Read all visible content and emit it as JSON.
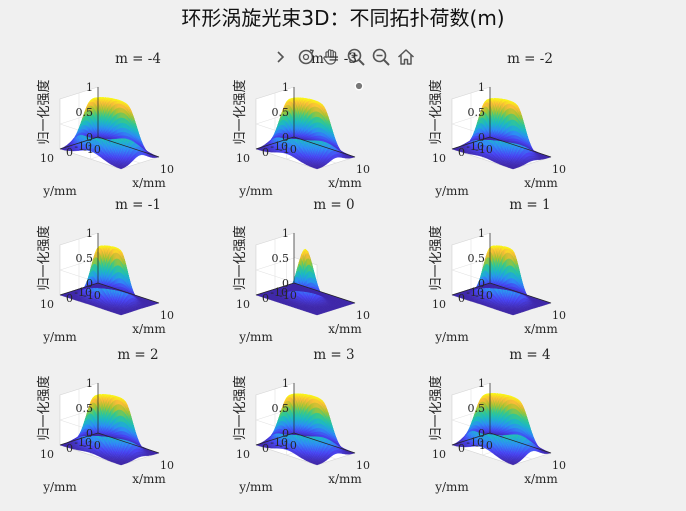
{
  "figure": {
    "title": "环形涡旋光束3D：不同拓扑荷数(m)",
    "toolbar_icons": [
      "chevron-right-icon",
      "rotate-3d-icon",
      "pan-hand-icon",
      "zoom-in-icon",
      "zoom-out-icon",
      "home-icon"
    ]
  },
  "colors": {
    "background": "#f0f0f0",
    "colormap": [
      "#3e26a8",
      "#4743f3",
      "#2d8cf6",
      "#1bb8c6",
      "#36c98a",
      "#a9c32f",
      "#f9bb39",
      "#f9fb14"
    ]
  },
  "chart_data": [
    {
      "type": "surface3d",
      "title": "m = -4",
      "m": -4,
      "peak_radius_mm": 4.8,
      "width_mm": 2.7,
      "ring": true,
      "xlabel": "x/mm",
      "ylabel": "y/mm",
      "zlabel": "归一化强度",
      "xticks": [
        "-10",
        "10"
      ],
      "yticks": [
        "-10",
        "0",
        "10"
      ],
      "zticks": [
        "0",
        "0.5",
        "1"
      ],
      "xlim": [
        -10,
        10
      ],
      "ylim": [
        -10,
        10
      ],
      "zlim": [
        0,
        1
      ],
      "grid": true
    },
    {
      "type": "surface3d",
      "title": "m = -3",
      "m": -3,
      "peak_radius_mm": 4.5,
      "width_mm": 2.6,
      "ring": true,
      "xlabel": "x/mm",
      "ylabel": "y/mm",
      "zlabel": "归一化强度",
      "xticks": [
        "-10",
        "10"
      ],
      "yticks": [
        "-10",
        "0",
        "10"
      ],
      "zticks": [
        "0",
        "0.5",
        "1"
      ],
      "xlim": [
        -10,
        10
      ],
      "ylim": [
        -10,
        10
      ],
      "zlim": [
        0,
        1
      ],
      "grid": true
    },
    {
      "type": "surface3d",
      "title": "m = -2",
      "m": -2,
      "peak_radius_mm": 4.0,
      "width_mm": 2.4,
      "ring": true,
      "xlabel": "x/mm",
      "ylabel": "y/mm",
      "zlabel": "归一化强度",
      "xticks": [
        "-10",
        "10"
      ],
      "yticks": [
        "-10",
        "0",
        "10"
      ],
      "zticks": [
        "0",
        "0.5",
        "1"
      ],
      "xlim": [
        -10,
        10
      ],
      "ylim": [
        -10,
        10
      ],
      "zlim": [
        0,
        1
      ],
      "grid": true
    },
    {
      "type": "surface3d",
      "title": "m = -1",
      "m": -1,
      "peak_radius_mm": 2.9,
      "width_mm": 2.1,
      "ring": true,
      "xlabel": "x/mm",
      "ylabel": "y/mm",
      "zlabel": "归一化强度",
      "xticks": [
        "-10",
        "10"
      ],
      "yticks": [
        "-10",
        "0",
        "10"
      ],
      "zticks": [
        "0",
        "0.5",
        "1"
      ],
      "xlim": [
        -10,
        10
      ],
      "ylim": [
        -10,
        10
      ],
      "zlim": [
        0,
        1
      ],
      "grid": true
    },
    {
      "type": "surface3d",
      "title": "m = 0",
      "m": 0,
      "peak_radius_mm": 0,
      "width_mm": 2.2,
      "ring": false,
      "xlabel": "x/mm",
      "ylabel": "y/mm",
      "zlabel": "归一化强度",
      "xticks": [
        "-10",
        "10"
      ],
      "yticks": [
        "-10",
        "0",
        "10"
      ],
      "zticks": [
        "0",
        "0.5",
        "1"
      ],
      "xlim": [
        -10,
        10
      ],
      "ylim": [
        -10,
        10
      ],
      "zlim": [
        0,
        1
      ],
      "grid": true
    },
    {
      "type": "surface3d",
      "title": "m = 1",
      "m": 1,
      "peak_radius_mm": 2.9,
      "width_mm": 2.1,
      "ring": true,
      "xlabel": "x/mm",
      "ylabel": "y/mm",
      "zlabel": "归一化强度",
      "xticks": [
        "-10",
        "10"
      ],
      "yticks": [
        "-10",
        "0",
        "10"
      ],
      "zticks": [
        "0",
        "0.5",
        "1"
      ],
      "xlim": [
        -10,
        10
      ],
      "ylim": [
        -10,
        10
      ],
      "zlim": [
        0,
        1
      ],
      "grid": true
    },
    {
      "type": "surface3d",
      "title": "m = 2",
      "m": 2,
      "peak_radius_mm": 4.0,
      "width_mm": 2.4,
      "ring": true,
      "xlabel": "x/mm",
      "ylabel": "y/mm",
      "zlabel": "归一化强度",
      "xticks": [
        "-10",
        "10"
      ],
      "yticks": [
        "-10",
        "0",
        "10"
      ],
      "zticks": [
        "0",
        "0.5",
        "1"
      ],
      "xlim": [
        -10,
        10
      ],
      "ylim": [
        -10,
        10
      ],
      "zlim": [
        0,
        1
      ],
      "grid": true
    },
    {
      "type": "surface3d",
      "title": "m = 3",
      "m": 3,
      "peak_radius_mm": 4.5,
      "width_mm": 2.6,
      "ring": true,
      "xlabel": "x/mm",
      "ylabel": "y/mm",
      "zlabel": "归一化强度",
      "xticks": [
        "-10",
        "10"
      ],
      "yticks": [
        "-10",
        "0",
        "10"
      ],
      "zticks": [
        "0",
        "0.5",
        "1"
      ],
      "xlim": [
        -10,
        10
      ],
      "ylim": [
        -10,
        10
      ],
      "zlim": [
        0,
        1
      ],
      "grid": true
    },
    {
      "type": "surface3d",
      "title": "m = 4",
      "m": 4,
      "peak_radius_mm": 4.8,
      "width_mm": 2.7,
      "ring": true,
      "xlabel": "x/mm",
      "ylabel": "y/mm",
      "zlabel": "归一化强度",
      "xticks": [
        "-10",
        "10"
      ],
      "yticks": [
        "-10",
        "0",
        "10"
      ],
      "zticks": [
        "0",
        "0.5",
        "1"
      ],
      "xlim": [
        -10,
        10
      ],
      "ylim": [
        -10,
        10
      ],
      "zlim": [
        0,
        1
      ],
      "grid": true
    }
  ]
}
